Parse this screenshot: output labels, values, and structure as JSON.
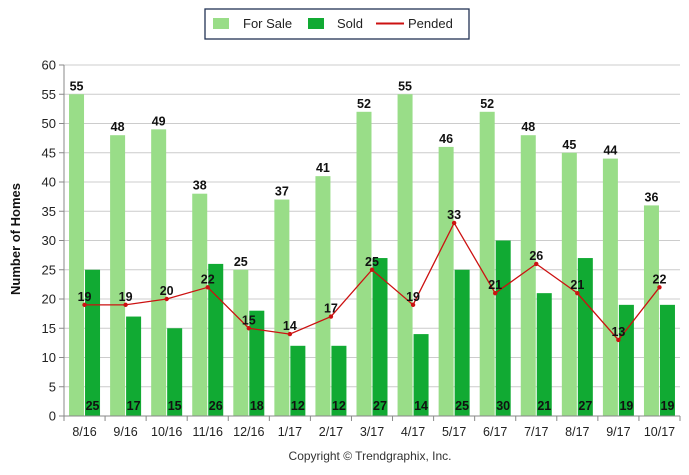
{
  "chart_data": {
    "type": "bar",
    "categories": [
      "8/16",
      "9/16",
      "10/16",
      "11/16",
      "12/16",
      "1/17",
      "2/17",
      "3/17",
      "4/17",
      "5/17",
      "6/17",
      "7/17",
      "8/17",
      "9/17",
      "10/17"
    ],
    "series": [
      {
        "name": "For Sale",
        "type": "bar",
        "color": "#99dd88",
        "values": [
          55,
          48,
          49,
          38,
          25,
          37,
          41,
          52,
          55,
          46,
          52,
          48,
          45,
          44,
          36
        ]
      },
      {
        "name": "Sold",
        "type": "bar",
        "color": "#11aa33",
        "values": [
          25,
          17,
          15,
          26,
          18,
          12,
          12,
          27,
          14,
          25,
          30,
          21,
          27,
          19,
          19
        ]
      },
      {
        "name": "Pended",
        "type": "line",
        "color": "#cc1111",
        "values": [
          19,
          19,
          20,
          22,
          15,
          14,
          17,
          25,
          19,
          33,
          21,
          26,
          21,
          13,
          22
        ]
      }
    ],
    "ylabel": "Number of Homes",
    "ylim": [
      0,
      60
    ],
    "yticks": [
      0,
      5,
      10,
      15,
      20,
      25,
      30,
      35,
      40,
      45,
      50,
      55,
      60
    ],
    "grid": true,
    "legend_position": "top-center"
  },
  "footer": {
    "copyright": "Copyright © Trendgraphix, Inc."
  }
}
